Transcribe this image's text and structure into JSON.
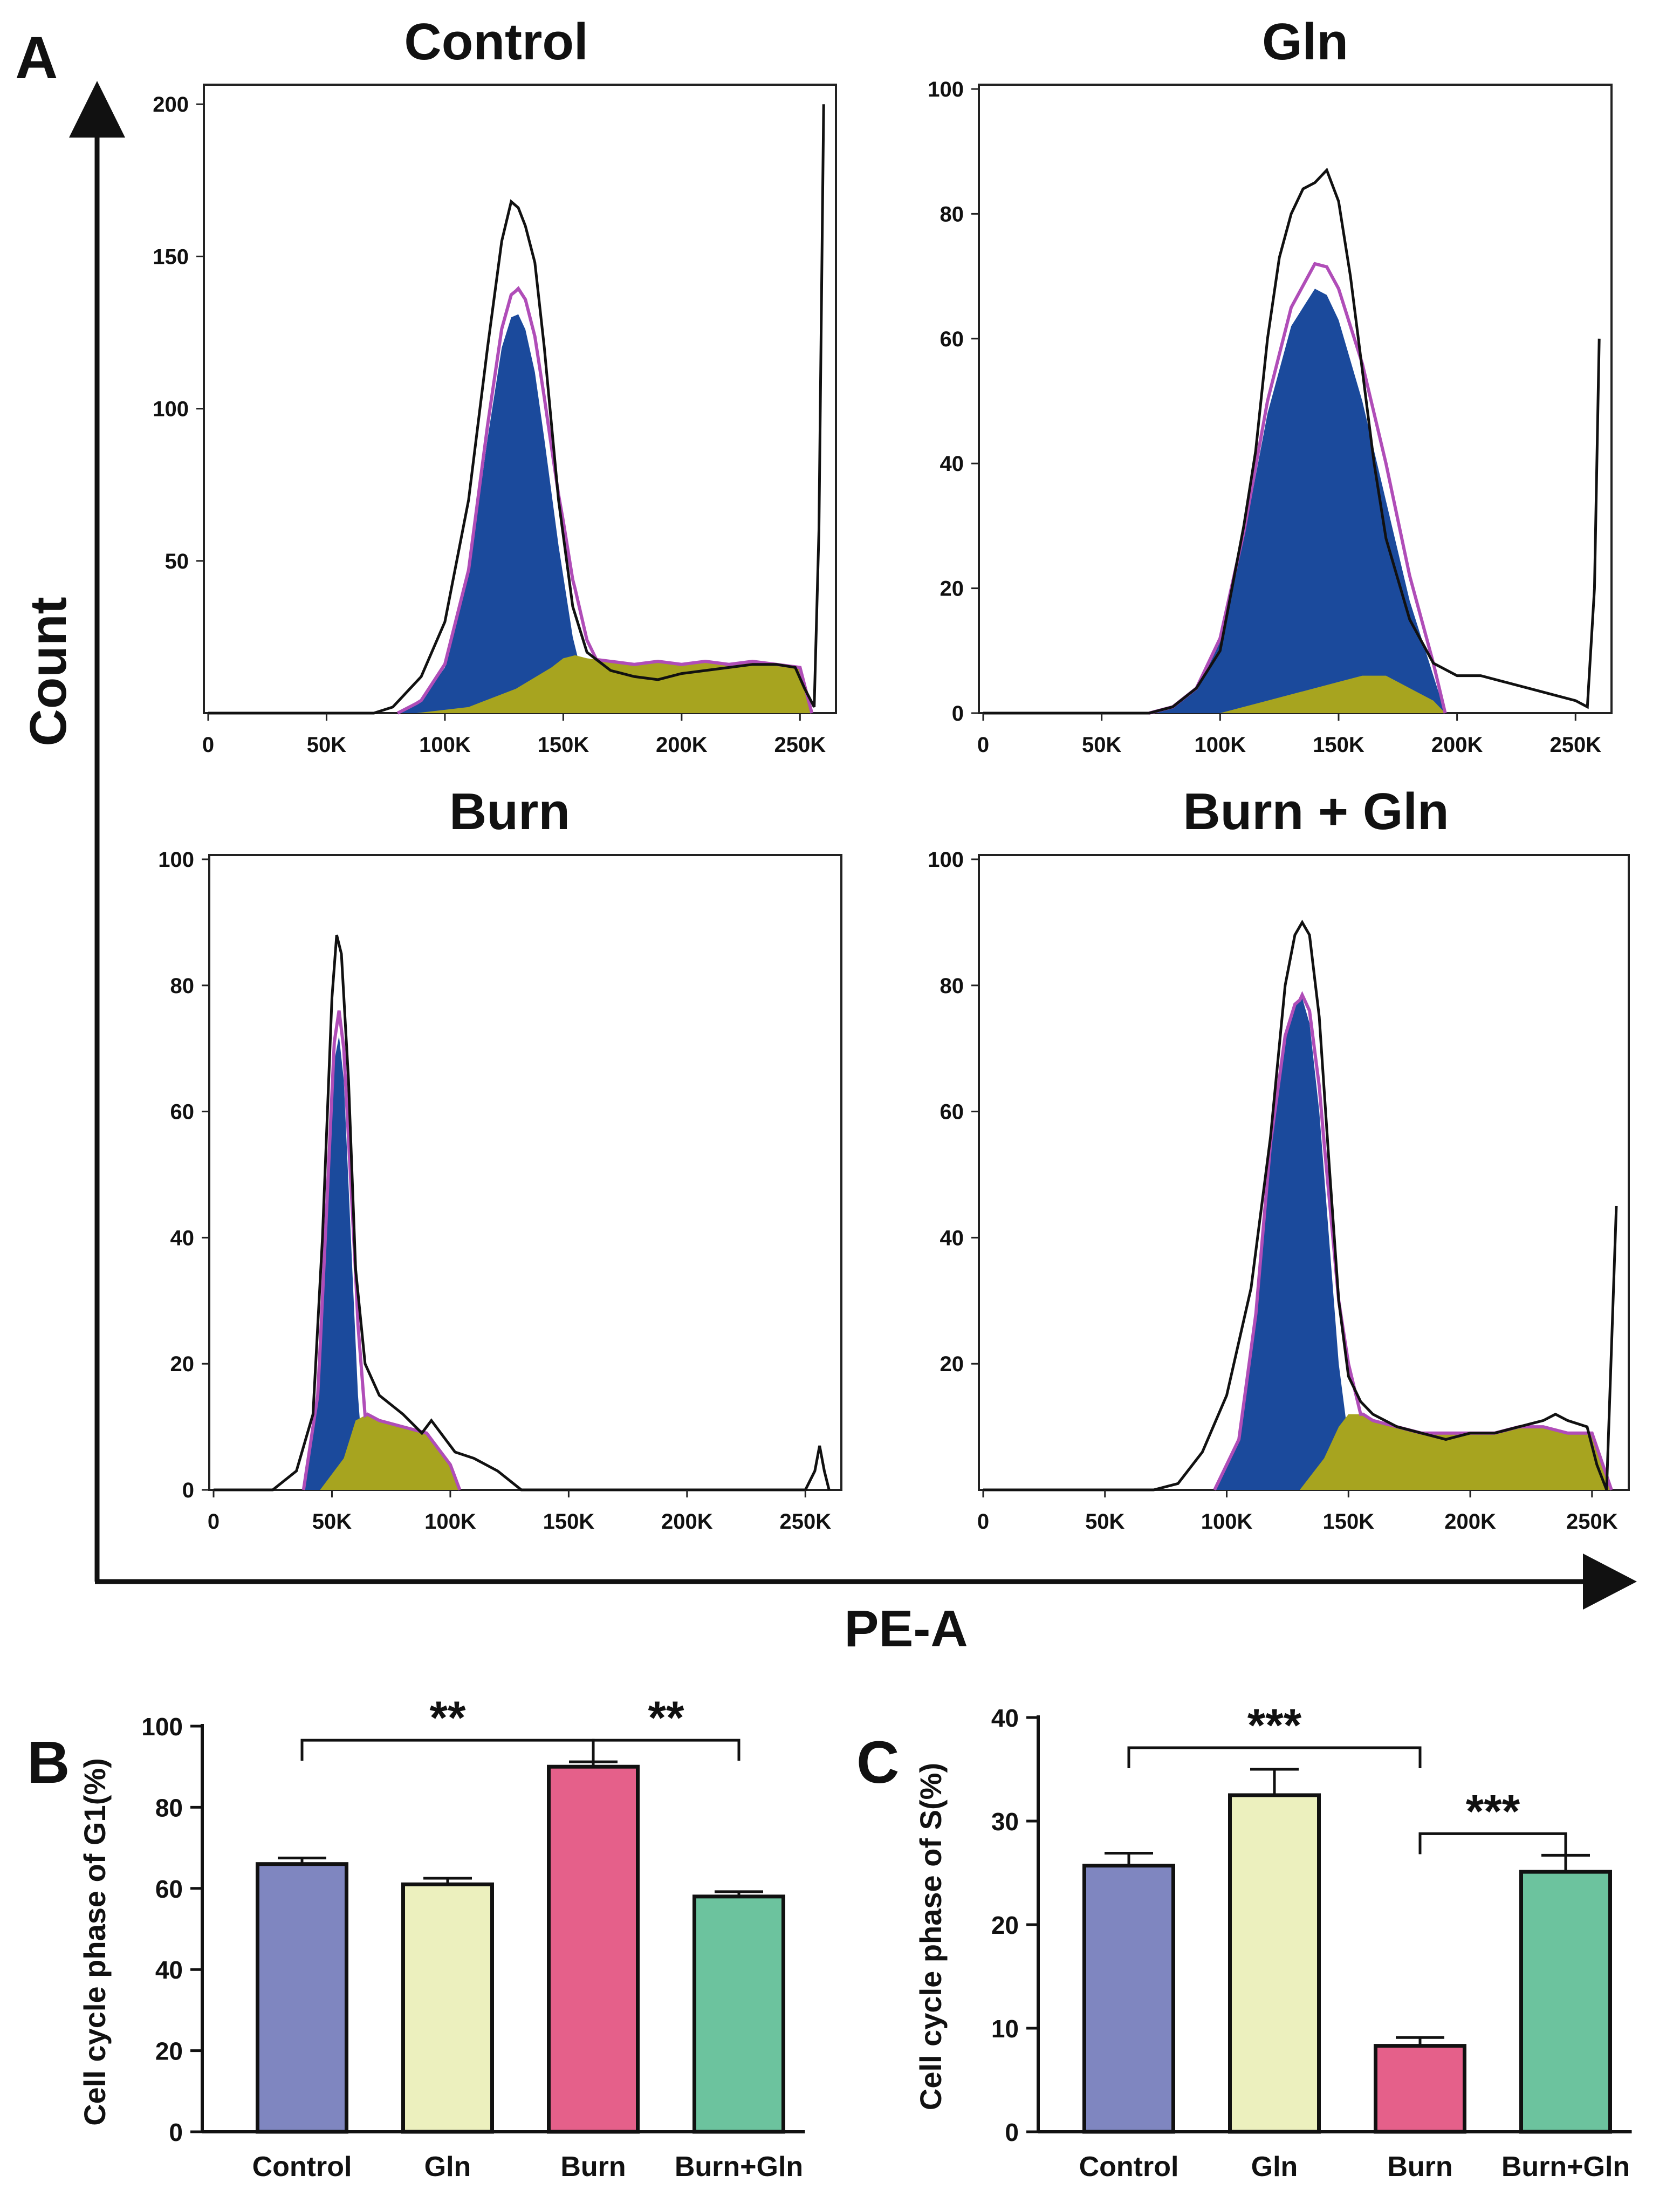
{
  "figure": {
    "panel_labels": [
      "A",
      "B",
      "C"
    ],
    "shared_x_label": "PE-A",
    "shared_y_label": "Count"
  },
  "colors": {
    "g1_fill": "#1b4a9c",
    "s_fill": "#a7a41f",
    "envelope_black": "#111111",
    "fit_magenta": "#b04db8",
    "bar_control": "#7f86c0",
    "bar_gln": "#ecf0be",
    "bar_burn": "#e5608a",
    "bar_burn_gln": "#6cc39e"
  },
  "chart_data": [
    {
      "type": "area",
      "title": "Control",
      "xlabel": "PE-A",
      "ylabel": "Count",
      "x_ticks": [
        "0",
        "50K",
        "100K",
        "150K",
        "200K",
        "250K"
      ],
      "y_ticks": [
        "50",
        "100",
        "150",
        "200"
      ],
      "xlim": [
        0,
        262000
      ],
      "ylim": [
        0,
        205
      ],
      "series": [
        {
          "name": "total",
          "x": [
            0,
            70000,
            78000,
            90000,
            100000,
            110000,
            118000,
            124000,
            128000,
            131000,
            134000,
            138000,
            142000,
            148000,
            154000,
            160000,
            170000,
            180000,
            190000,
            200000,
            210000,
            220000,
            230000,
            240000,
            248000,
            252000,
            256000,
            258000,
            260000
          ],
          "values": [
            0,
            0,
            2,
            12,
            30,
            70,
            120,
            155,
            168,
            166,
            160,
            148,
            120,
            70,
            35,
            20,
            14,
            12,
            11,
            13,
            14,
            15,
            16,
            16,
            15,
            8,
            2,
            60,
            200
          ]
        },
        {
          "name": "g1",
          "x": [
            80000,
            90000,
            100000,
            110000,
            118000,
            124000,
            128000,
            131000,
            134000,
            138000,
            142000,
            148000,
            154000,
            160000,
            164000
          ],
          "values": [
            0,
            4,
            15,
            45,
            90,
            120,
            130,
            131,
            126,
            112,
            90,
            55,
            25,
            6,
            0
          ]
        },
        {
          "name": "s",
          "x": [
            88000,
            110000,
            130000,
            145000,
            150000,
            155000,
            160000,
            170000,
            180000,
            190000,
            200000,
            210000,
            220000,
            230000,
            240000,
            250000,
            255000
          ],
          "values": [
            0,
            2,
            8,
            15,
            18,
            19,
            18,
            17,
            16,
            17,
            16,
            17,
            16,
            17,
            16,
            15,
            0
          ]
        }
      ]
    },
    {
      "type": "area",
      "title": "Gln",
      "xlabel": "PE-A",
      "ylabel": "Count",
      "x_ticks": [
        "0",
        "50K",
        "100K",
        "150K",
        "200K",
        "250K"
      ],
      "y_ticks": [
        "0",
        "20",
        "40",
        "60",
        "80",
        "100"
      ],
      "xlim": [
        0,
        262000
      ],
      "ylim": [
        0,
        100
      ],
      "series": [
        {
          "name": "total",
          "x": [
            0,
            70000,
            80000,
            90000,
            100000,
            110000,
            115000,
            120000,
            125000,
            130000,
            135000,
            140000,
            145000,
            150000,
            155000,
            160000,
            165000,
            170000,
            180000,
            190000,
            200000,
            210000,
            220000,
            230000,
            240000,
            250000,
            255000,
            258000,
            260000
          ],
          "values": [
            0,
            0,
            1,
            4,
            10,
            30,
            42,
            60,
            73,
            80,
            84,
            85,
            87,
            82,
            70,
            55,
            40,
            28,
            15,
            8,
            6,
            6,
            5,
            4,
            3,
            2,
            1,
            20,
            60
          ]
        },
        {
          "name": "g1",
          "x": [
            70000,
            80000,
            90000,
            100000,
            110000,
            120000,
            130000,
            140000,
            145000,
            150000,
            160000,
            170000,
            180000,
            190000,
            195000
          ],
          "values": [
            0,
            1,
            4,
            12,
            28,
            48,
            62,
            68,
            67,
            63,
            50,
            34,
            18,
            6,
            0
          ]
        },
        {
          "name": "s",
          "x": [
            100000,
            120000,
            140000,
            150000,
            160000,
            170000,
            175000,
            180000,
            190000,
            195000
          ],
          "values": [
            0,
            2,
            4,
            5,
            6,
            6,
            5,
            4,
            2,
            0
          ]
        }
      ]
    },
    {
      "type": "area",
      "title": "Burn",
      "xlabel": "PE-A",
      "ylabel": "Count",
      "x_ticks": [
        "0",
        "50K",
        "100K",
        "150K",
        "200K",
        "250K"
      ],
      "y_ticks": [
        "0",
        "20",
        "40",
        "60",
        "80",
        "100"
      ],
      "xlim": [
        0,
        262000
      ],
      "ylim": [
        0,
        100
      ],
      "series": [
        {
          "name": "total",
          "x": [
            0,
            25000,
            35000,
            42000,
            46000,
            50000,
            52000,
            54000,
            57000,
            60000,
            64000,
            70000,
            80000,
            88000,
            92000,
            96000,
            102000,
            110000,
            120000,
            130000,
            150000,
            200000,
            250000,
            254000,
            256000,
            258000,
            260000
          ],
          "values": [
            0,
            0,
            3,
            12,
            40,
            78,
            88,
            85,
            65,
            35,
            20,
            15,
            12,
            9,
            11,
            9,
            6,
            5,
            3,
            0,
            0,
            0,
            0,
            3,
            7,
            3,
            0
          ]
        },
        {
          "name": "g1",
          "x": [
            38000,
            44000,
            48000,
            51000,
            53000,
            55000,
            58000,
            61000,
            64000
          ],
          "values": [
            0,
            15,
            45,
            68,
            72,
            65,
            40,
            15,
            0
          ]
        },
        {
          "name": "s",
          "x": [
            45000,
            55000,
            60000,
            65000,
            70000,
            80000,
            90000,
            100000,
            104000
          ],
          "values": [
            0,
            5,
            11,
            12,
            11,
            10,
            9,
            4,
            0
          ]
        }
      ]
    },
    {
      "type": "area",
      "title": "Burn + Gln",
      "xlabel": "PE-A",
      "ylabel": "Count",
      "x_ticks": [
        "0",
        "50K",
        "100K",
        "150K",
        "200K",
        "250K"
      ],
      "y_ticks": [
        "20",
        "40",
        "60",
        "80",
        "100"
      ],
      "xlim": [
        0,
        262000
      ],
      "ylim": [
        0,
        100
      ],
      "series": [
        {
          "name": "total",
          "x": [
            0,
            70000,
            80000,
            90000,
            100000,
            110000,
            118000,
            124000,
            128000,
            131000,
            134000,
            138000,
            142000,
            146000,
            150000,
            155000,
            160000,
            170000,
            180000,
            190000,
            200000,
            210000,
            220000,
            230000,
            235000,
            240000,
            248000,
            252000,
            256000,
            260000
          ],
          "values": [
            0,
            0,
            1,
            6,
            15,
            32,
            56,
            80,
            88,
            90,
            88,
            75,
            52,
            30,
            18,
            14,
            12,
            10,
            9,
            8,
            9,
            9,
            10,
            11,
            12,
            11,
            10,
            4,
            0,
            45
          ]
        },
        {
          "name": "g1",
          "x": [
            95000,
            105000,
            112000,
            118000,
            124000,
            128000,
            131000,
            134000,
            138000,
            142000,
            146000,
            150000,
            155000
          ],
          "values": [
            0,
            8,
            28,
            55,
            72,
            77,
            78,
            74,
            60,
            40,
            20,
            8,
            0
          ]
        },
        {
          "name": "s",
          "x": [
            130000,
            140000,
            146000,
            150000,
            156000,
            160000,
            170000,
            180000,
            190000,
            200000,
            210000,
            220000,
            230000,
            240000,
            250000,
            258000
          ],
          "values": [
            0,
            5,
            10,
            12,
            12,
            11,
            10,
            9,
            9,
            9,
            9,
            10,
            10,
            9,
            9,
            0
          ]
        }
      ]
    },
    {
      "type": "bar",
      "panel": "B",
      "categories": [
        "Control",
        "Gln",
        "Burn",
        "Burn+Gln"
      ],
      "values": [
        66,
        61,
        90,
        58
      ],
      "errors": [
        1.5,
        1.5,
        1.2,
        1.2
      ],
      "ylabel": "Cell cycle phase of G1(%)",
      "ylim": [
        0,
        100
      ],
      "y_ticks": [
        "0",
        "20",
        "40",
        "60",
        "80",
        "100"
      ],
      "significance": [
        {
          "from": 0,
          "to": 2,
          "label": "**"
        },
        {
          "from": 2,
          "to": 3,
          "label": "**"
        }
      ]
    },
    {
      "type": "bar",
      "panel": "C",
      "categories": [
        "Control",
        "Gln",
        "Burn",
        "Burn+Gln"
      ],
      "values": [
        25.7,
        32.5,
        8.3,
        25.1
      ],
      "errors": [
        1.2,
        2.5,
        0.8,
        1.6
      ],
      "ylabel": "Cell cycle phase of S(%)",
      "ylim": [
        0,
        40
      ],
      "y_ticks": [
        "0",
        "10",
        "20",
        "30",
        "40"
      ],
      "significance": [
        {
          "from": 0,
          "to": 2,
          "label": "***"
        },
        {
          "from": 2,
          "to": 3,
          "label": "***"
        }
      ]
    }
  ]
}
